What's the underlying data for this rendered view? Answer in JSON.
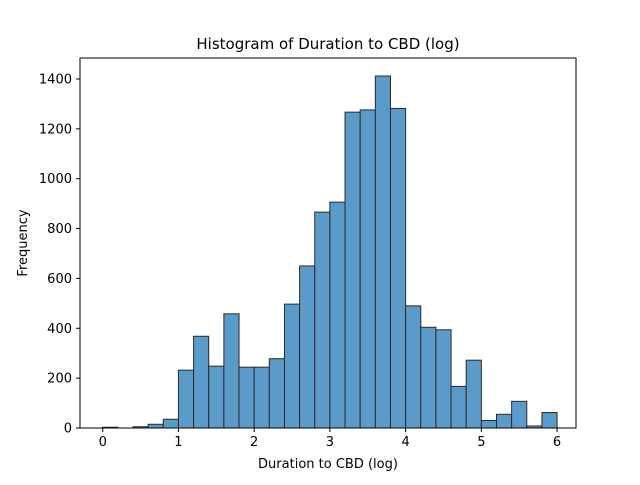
{
  "chart_data": {
    "type": "bar",
    "title": "Histogram of Duration to CBD (log)",
    "xlabel": "Duration to CBD (log)",
    "ylabel": "Frequency",
    "xlim": [
      -0.3,
      6.25
    ],
    "ylim": [
      0,
      1400
    ],
    "xticks": [
      0,
      1,
      2,
      3,
      4,
      5,
      6
    ],
    "yticks": [
      0,
      200,
      400,
      600,
      800,
      1000,
      1200,
      1400
    ],
    "grid": false,
    "bar_color": "#5b9bc9",
    "edge_color": "#2a2a2a",
    "bins": [
      {
        "x0": 0.0,
        "x1": 0.2,
        "value": 3
      },
      {
        "x0": 0.2,
        "x1": 0.4,
        "value": 0
      },
      {
        "x0": 0.4,
        "x1": 0.6,
        "value": 5
      },
      {
        "x0": 0.6,
        "x1": 0.8,
        "value": 15
      },
      {
        "x0": 0.8,
        "x1": 1.0,
        "value": 35
      },
      {
        "x0": 1.0,
        "x1": 1.2,
        "value": 232
      },
      {
        "x0": 1.2,
        "x1": 1.4,
        "value": 368
      },
      {
        "x0": 1.4,
        "x1": 1.6,
        "value": 248
      },
      {
        "x0": 1.6,
        "x1": 1.8,
        "value": 458
      },
      {
        "x0": 1.8,
        "x1": 2.0,
        "value": 244
      },
      {
        "x0": 2.0,
        "x1": 2.2,
        "value": 244
      },
      {
        "x0": 2.2,
        "x1": 2.4,
        "value": 278
      },
      {
        "x0": 2.4,
        "x1": 2.6,
        "value": 497
      },
      {
        "x0": 2.6,
        "x1": 2.8,
        "value": 650
      },
      {
        "x0": 2.8,
        "x1": 3.0,
        "value": 866
      },
      {
        "x0": 3.0,
        "x1": 3.2,
        "value": 906
      },
      {
        "x0": 3.2,
        "x1": 3.4,
        "value": 1267
      },
      {
        "x0": 3.4,
        "x1": 3.6,
        "value": 1276
      },
      {
        "x0": 3.6,
        "x1": 3.8,
        "value": 1412
      },
      {
        "x0": 3.8,
        "x1": 4.0,
        "value": 1282
      },
      {
        "x0": 4.0,
        "x1": 4.2,
        "value": 490
      },
      {
        "x0": 4.2,
        "x1": 4.4,
        "value": 404
      },
      {
        "x0": 4.4,
        "x1": 4.6,
        "value": 394
      },
      {
        "x0": 4.6,
        "x1": 4.8,
        "value": 167
      },
      {
        "x0": 4.8,
        "x1": 5.0,
        "value": 272
      },
      {
        "x0": 5.0,
        "x1": 5.2,
        "value": 30
      },
      {
        "x0": 5.2,
        "x1": 5.4,
        "value": 55
      },
      {
        "x0": 5.4,
        "x1": 5.6,
        "value": 107
      },
      {
        "x0": 5.6,
        "x1": 5.8,
        "value": 8
      },
      {
        "x0": 5.8,
        "x1": 6.0,
        "value": 62
      }
    ]
  }
}
